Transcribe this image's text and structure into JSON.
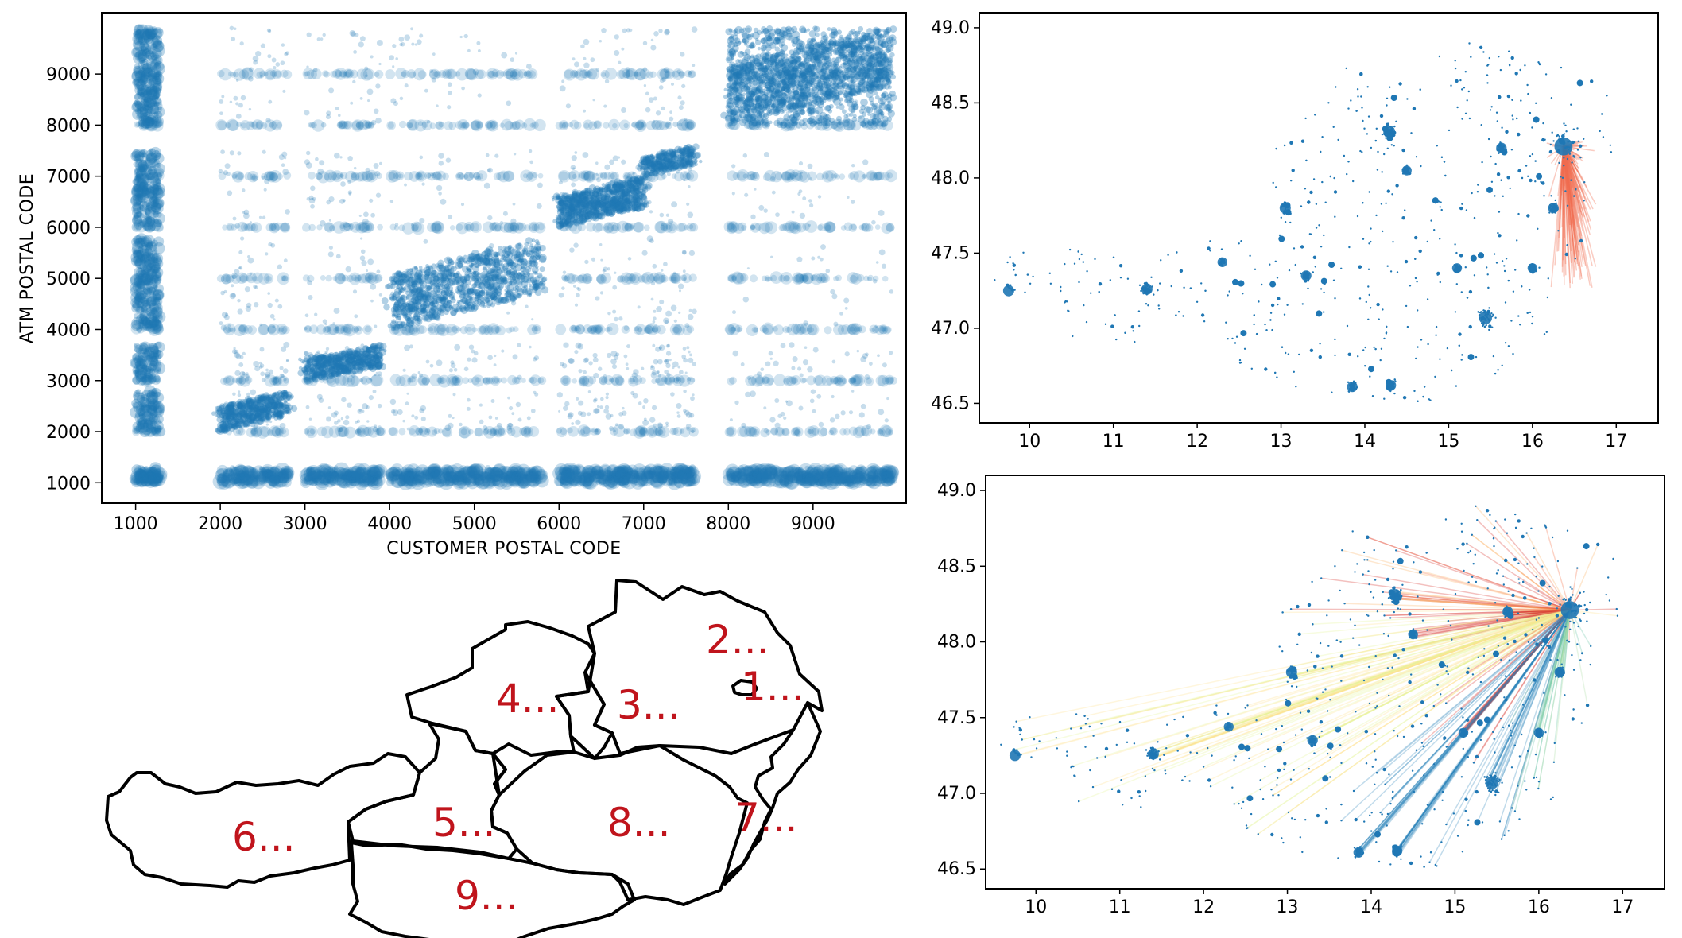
{
  "colors": {
    "points": "#1f77b4",
    "flow_red": "#f26c4f",
    "region_label": "#c0141c",
    "border": "#000000"
  },
  "chart_data": [
    {
      "type": "scatter",
      "xlabel": "CUSTOMER POSTAL CODE",
      "ylabel": "ATM POSTAL CODE",
      "xlim": [
        600,
        10100
      ],
      "ylim": [
        600,
        10200
      ],
      "xticks": [
        1000,
        2000,
        3000,
        4000,
        5000,
        6000,
        7000,
        8000,
        9000
      ],
      "yticks": [
        1000,
        2000,
        3000,
        4000,
        5000,
        6000,
        7000,
        8000,
        9000
      ],
      "grid": false,
      "clusters": [
        {
          "x_range": [
            1000,
            1300
          ],
          "y_range": [
            1000,
            1200
          ],
          "density": "very high"
        },
        {
          "x_range": [
            2000,
            2800
          ],
          "y_range": [
            2000,
            2800
          ],
          "density": "high"
        },
        {
          "x_range": [
            3000,
            3900
          ],
          "y_range": [
            3000,
            3700
          ],
          "density": "high"
        },
        {
          "x_range": [
            4000,
            5800
          ],
          "y_range": [
            4000,
            5800
          ],
          "density": "high"
        },
        {
          "x_range": [
            6000,
            7000
          ],
          "y_range": [
            6000,
            7000
          ],
          "density": "high"
        },
        {
          "x_range": [
            7000,
            7600
          ],
          "y_range": [
            7000,
            7600
          ],
          "density": "high"
        },
        {
          "x_range": [
            8000,
            9900
          ],
          "y_range": [
            8000,
            9900
          ],
          "density": "high"
        }
      ]
    },
    {
      "type": "map_points",
      "xlim": [
        9.4,
        17.5
      ],
      "ylim": [
        46.37,
        49.1
      ],
      "xticks": [
        10,
        11,
        12,
        13,
        14,
        15,
        16,
        17
      ],
      "yticks": [
        46.5,
        47.0,
        47.5,
        48.0,
        48.5,
        49.0
      ],
      "hub": [
        16.37,
        48.21
      ],
      "flows": "short range, red"
    },
    {
      "type": "map_flows",
      "xlim": [
        9.4,
        17.5
      ],
      "ylim": [
        46.37,
        49.1
      ],
      "xticks": [
        10,
        11,
        12,
        13,
        14,
        15,
        16,
        17
      ],
      "yticks": [
        46.5,
        47.0,
        47.5,
        48.0,
        48.5,
        49.0
      ],
      "hub": [
        16.37,
        48.21
      ],
      "flows": "long range, colored by direction"
    }
  ],
  "regions": [
    {
      "label": "1..."
    },
    {
      "label": "2..."
    },
    {
      "label": "3..."
    },
    {
      "label": "4..."
    },
    {
      "label": "5..."
    },
    {
      "label": "6..."
    },
    {
      "label": "7..."
    },
    {
      "label": "8..."
    },
    {
      "label": "9..."
    }
  ]
}
